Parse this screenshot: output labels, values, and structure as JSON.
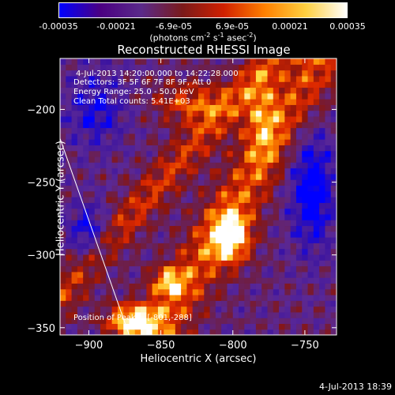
{
  "colorbar": {
    "ticks": [
      "-0.00035",
      "-0.00021",
      "-6.9e-05",
      "6.9e-05",
      "0.00021",
      "0.00035"
    ],
    "label_main": "(photons cm",
    "label_sup1": "-2",
    "label_mid": " s",
    "label_sup2": "-1",
    "label_end": " asec",
    "label_sup3": "-2",
    "label_close": ")",
    "colors": [
      "#0000ff",
      "#4b0082",
      "#5a2a8a",
      "#7a1a1a",
      "#d02000",
      "#ff8000",
      "#ffd040",
      "#ffffff"
    ]
  },
  "chart_data": {
    "type": "heatmap",
    "title": "Reconstructed RHESSI Image",
    "xlabel": "Heliocentric X (arcsec)",
    "ylabel": "Heliocentric Y (arcsec)",
    "xlim": [
      -920,
      -728
    ],
    "ylim": [
      -355,
      -165
    ],
    "xticks": [
      -900,
      -850,
      -800,
      -750
    ],
    "yticks": [
      -200,
      -250,
      -300,
      -350
    ],
    "xtick_labels": [
      "−900",
      "−850",
      "−800",
      "−750"
    ],
    "ytick_labels": [
      "−200",
      "−250",
      "−300",
      "−350"
    ],
    "clim": [
      -0.00035,
      0.00035
    ],
    "limb_line": [
      [
        -920,
        -220
      ],
      [
        -872,
        -355
      ]
    ]
  },
  "annotations": {
    "time_range": "4-Jul-2013 14:20:00.000 to 14:22:28.000",
    "detectors": "Detectors: 3F 5F 6F 7F 8F 9F, Att 0",
    "energy": "Energy Range: 25.0 - 50.0 keV",
    "clean": "Clean     Total counts: 5.41E+03",
    "position": "Position of Peak = [-801,-288]"
  },
  "footer": "4-Jul-2013 18:39"
}
